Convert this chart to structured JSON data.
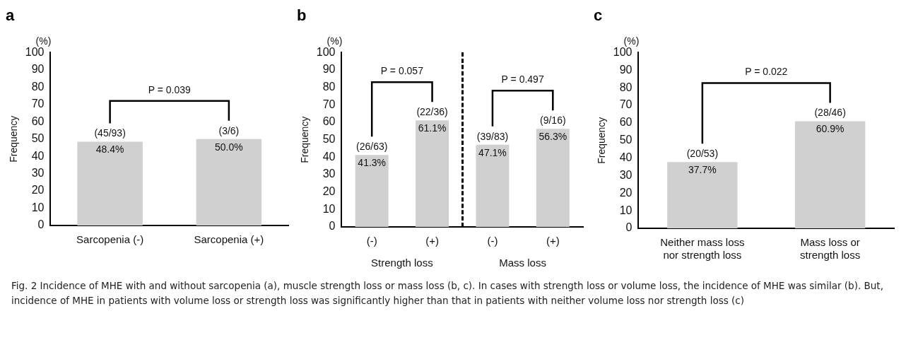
{
  "chart_data": [
    {
      "type": "bar",
      "title": "a",
      "subtitle": "(%)",
      "ylabel": "Frequency",
      "categories": [
        "Sarcopenia (-)",
        "Sarcopenia (+)"
      ],
      "values": [
        48.4,
        50.0
      ],
      "color": "#d0d0d0",
      "value_labels": [
        "48.4%",
        "50.0%"
      ],
      "ylim": [
        0,
        100
      ],
      "yticks": [
        0,
        10,
        20,
        30,
        40,
        50,
        60,
        70,
        80,
        90,
        100
      ],
      "grid": false,
      "annotations": [
        "(45/93)",
        "(3/6)",
        "P = 0.039"
      ]
    },
    {
      "type": "bar",
      "title": "b",
      "subtitle": "(%)",
      "ylabel": "Frequency",
      "categories": [
        "(-)",
        "(+)",
        "(-)",
        "(+)"
      ],
      "values": [
        41.3,
        61.1,
        47.1,
        56.3
      ],
      "color": "#d0d0d0",
      "value_labels": [
        "41.3%",
        "61.1%",
        "47.1%",
        "56.3%"
      ],
      "ylim": [
        0,
        100
      ],
      "yticks": [
        0,
        10,
        20,
        30,
        40,
        50,
        60,
        70,
        80,
        90,
        100
      ],
      "grid": false,
      "annotations": [
        "(26/63)",
        "(22/36)",
        "(39/83)",
        "(9/16)",
        "P = 0.057",
        "P = 0.497",
        "Strength loss",
        "Mass loss"
      ]
    },
    {
      "type": "bar",
      "title": "c",
      "subtitle": "(%)",
      "ylabel": "Frequency",
      "categories": [
        "Neither mass loss nor strength loss",
        "Mass loss or strength loss"
      ],
      "values": [
        37.7,
        60.9
      ],
      "color": "#d0d0d0",
      "value_labels": [
        "37.7%",
        "60.9%"
      ],
      "ylim": [
        0,
        100
      ],
      "yticks": [
        0,
        10,
        20,
        30,
        40,
        50,
        60,
        70,
        80,
        90,
        100
      ],
      "grid": false,
      "annotations": [
        "(20/53)",
        "(28/46)",
        "P = 0.022"
      ]
    },
    {
      "type": "other",
      "annotations": [
        "Fig. 2 Incidence of MHE with and without sarcopenia (a), muscle strength loss or mass loss (b, c). In cases with strength loss or volume loss, the incidence of MHE was similar (b). But, incidence of MHE in patients with volume loss or strength loss was significantly higher than that in patients with neither volume loss nor strength loss (c)"
      ]
    }
  ]
}
